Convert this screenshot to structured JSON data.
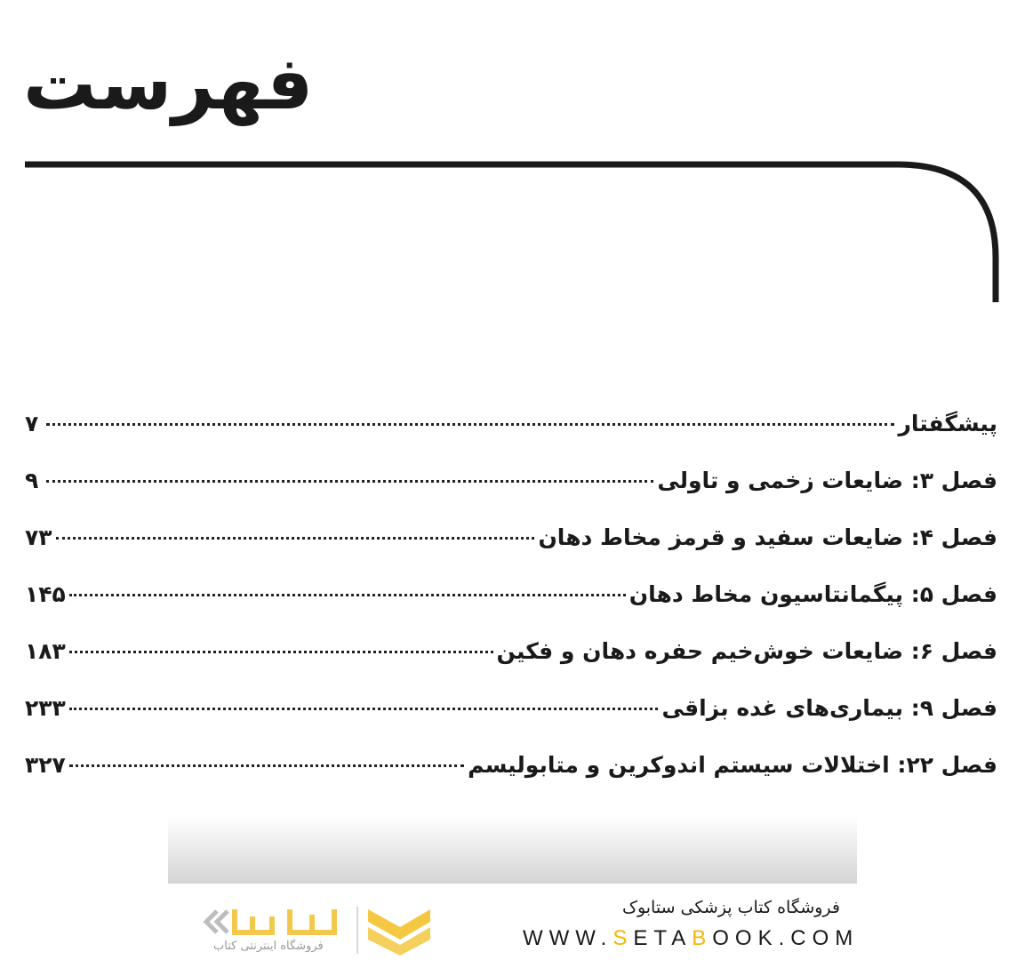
{
  "title": "فهرست",
  "toc": [
    {
      "label": "پیشگفتار",
      "page": "۷"
    },
    {
      "label": "فصل ۳: ضایعات زخمی و تاولی",
      "page": "۹"
    },
    {
      "label": "فصل ۴: ضایعات سفید و قرمز مخاط دهان",
      "page": "۷۳"
    },
    {
      "label": "فصل ۵: پیگمانتاسیون مخاط دهان",
      "page": "۱۴۵"
    },
    {
      "label": "فصل ۶: ضایعات خوش‌خیم حفره دهان و فکین",
      "page": "۱۸۳"
    },
    {
      "label": "فصل ۹: بیماری‌های غده بزاقی",
      "page": "۲۳۳"
    },
    {
      "label": "فصل ۲۲: اختلالات سیستم اندوکرین و متابولیسم",
      "page": "۳۲۷"
    }
  ],
  "footer": {
    "shop_name": "فروشگاه کتاب پزشکی ستابوک",
    "url_parts": [
      "WWW.",
      "S",
      "ETA",
      "B",
      "OOK.COM"
    ],
    "logo_text": "ستابوک",
    "logo_subtitle": "فروشگاه اینترنتی کتاب",
    "accent_color": "#f2b705"
  }
}
